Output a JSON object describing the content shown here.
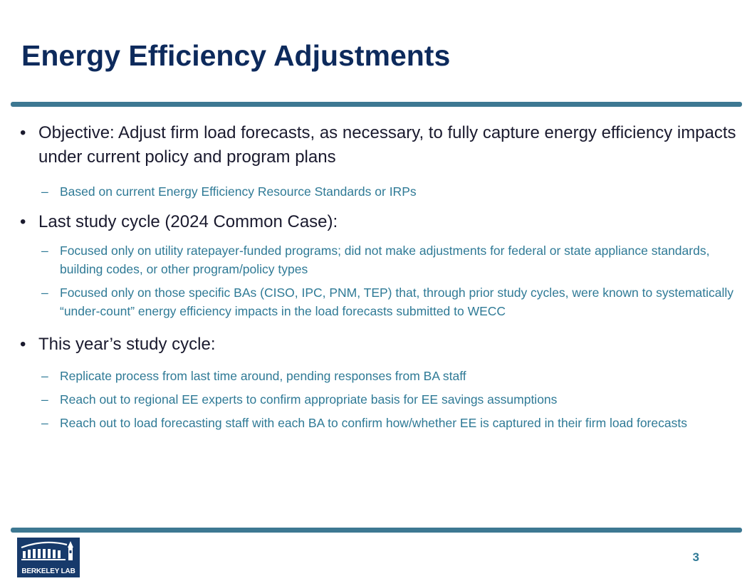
{
  "title": "Energy Efficiency Adjustments",
  "bullets": [
    {
      "text": "Objective: Adjust firm load forecasts, as necessary, to fully capture energy efficiency impacts under current policy and program plans",
      "subs": [
        "Based on current Energy Efficiency Resource Standards or IRPs"
      ]
    },
    {
      "text": "Last study cycle (2024 Common Case):",
      "subs": [
        "Focused only on utility ratepayer-funded programs; did not make adjustments for federal or state appliance standards, building codes, or other program/policy types",
        "Focused only on those specific BAs (CISO, IPC, PNM, TEP) that, through prior study cycles, were known to systematically “under-count” energy efficiency impacts in the load forecasts submitted to WECC"
      ]
    },
    {
      "text": "This year’s study cycle:",
      "subs": [
        "Replicate process from last time around, pending responses from BA staff",
        "Reach out to regional EE experts to confirm appropriate basis for EE savings assumptions",
        "Reach out to load forecasting staff with each BA to confirm how/whether EE is captured in their firm load forecasts"
      ]
    }
  ],
  "bullet_symbol": "•",
  "dash_symbol": "–",
  "footer": {
    "logo_text": "BERKELEY LAB",
    "page_number": "3"
  },
  "colors": {
    "title": "#0d2a5c",
    "rule": "#3d7892",
    "sub_text": "#2f7a96",
    "logo_bg": "#173a6b"
  }
}
